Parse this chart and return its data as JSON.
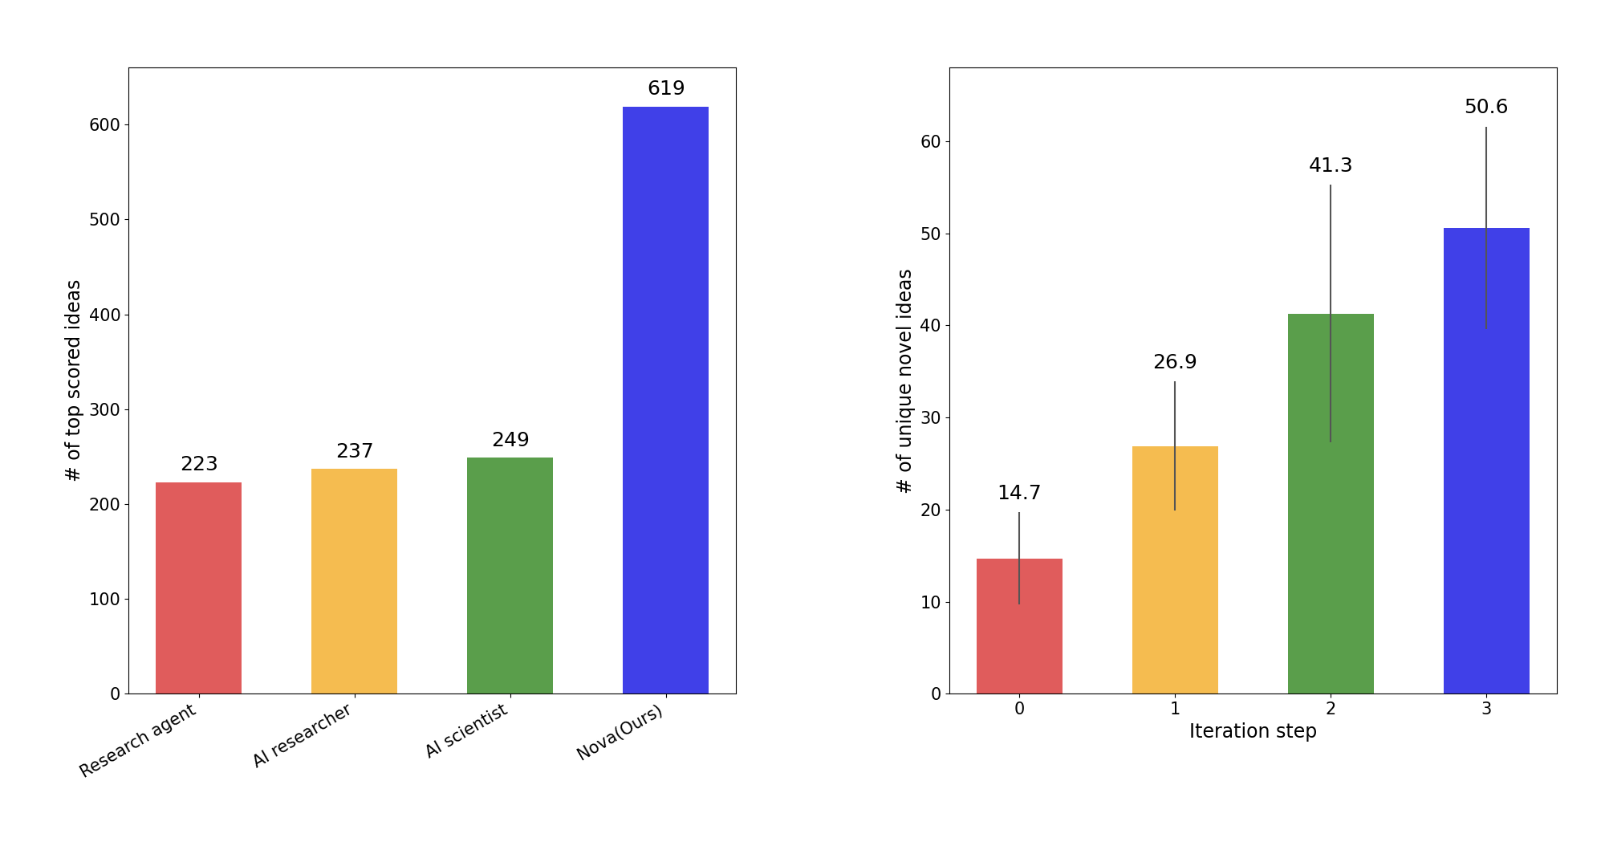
{
  "left_chart": {
    "categories": [
      "Research agent",
      "AI researcher",
      "AI scientist",
      "Nova(Ours)"
    ],
    "values": [
      223,
      237,
      249,
      619
    ],
    "colors": [
      "#E05C5C",
      "#F5BC50",
      "#5A9E4B",
      "#4040E8"
    ],
    "ylabel": "# of top scored ideas",
    "ylim": [
      0,
      660
    ],
    "yticks": [
      0,
      100,
      200,
      300,
      400,
      500,
      600
    ]
  },
  "right_chart": {
    "categories": [
      "0",
      "1",
      "2",
      "3"
    ],
    "values": [
      14.7,
      26.9,
      41.3,
      50.6
    ],
    "errors": [
      5.0,
      7.0,
      14.0,
      11.0
    ],
    "colors": [
      "#E05C5C",
      "#F5BC50",
      "#5A9E4B",
      "#4040E8"
    ],
    "ylabel": "# of unique novel ideas",
    "xlabel": "Iteration step",
    "ylim": [
      0,
      68
    ],
    "yticks": [
      0,
      10,
      20,
      30,
      40,
      50,
      60
    ]
  },
  "label_fontsize": 17,
  "tick_fontsize": 15,
  "annot_fontsize": 18,
  "bar_width": 0.55
}
